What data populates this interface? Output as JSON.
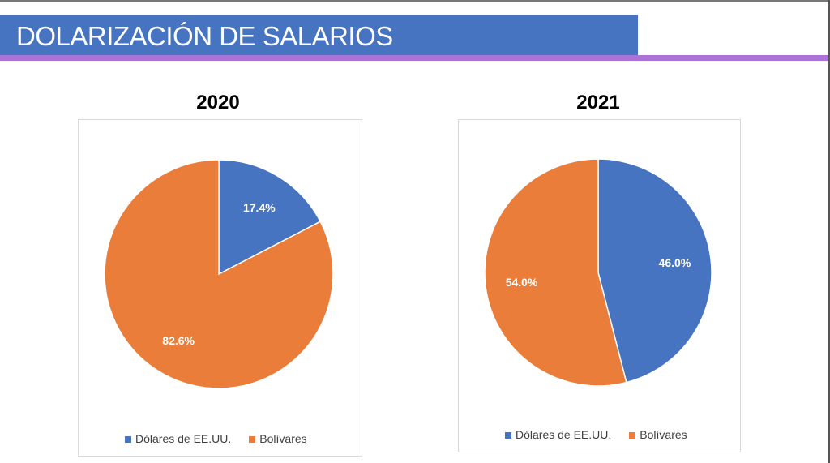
{
  "header": {
    "title": "DOLARIZACIÓN DE SALARIOS"
  },
  "colors": {
    "usd": "#4674c1",
    "bs": "#ea7d3a",
    "banner": "#4674c1",
    "stripe": "#ab72d8"
  },
  "chart_data": [
    {
      "type": "pie",
      "title": "2020",
      "labels": [
        "Dólares de EE.UU.",
        "Bolívares"
      ],
      "values": [
        17.4,
        82.6
      ],
      "data_labels": [
        "17.4%",
        "82.6%"
      ],
      "legend": "bottom"
    },
    {
      "type": "pie",
      "title": "2021",
      "labels": [
        "Dólares de EE.UU.",
        "Bolívares"
      ],
      "values": [
        46.0,
        54.0
      ],
      "data_labels": [
        "46.0%",
        "54.0%"
      ],
      "legend": "bottom"
    }
  ]
}
